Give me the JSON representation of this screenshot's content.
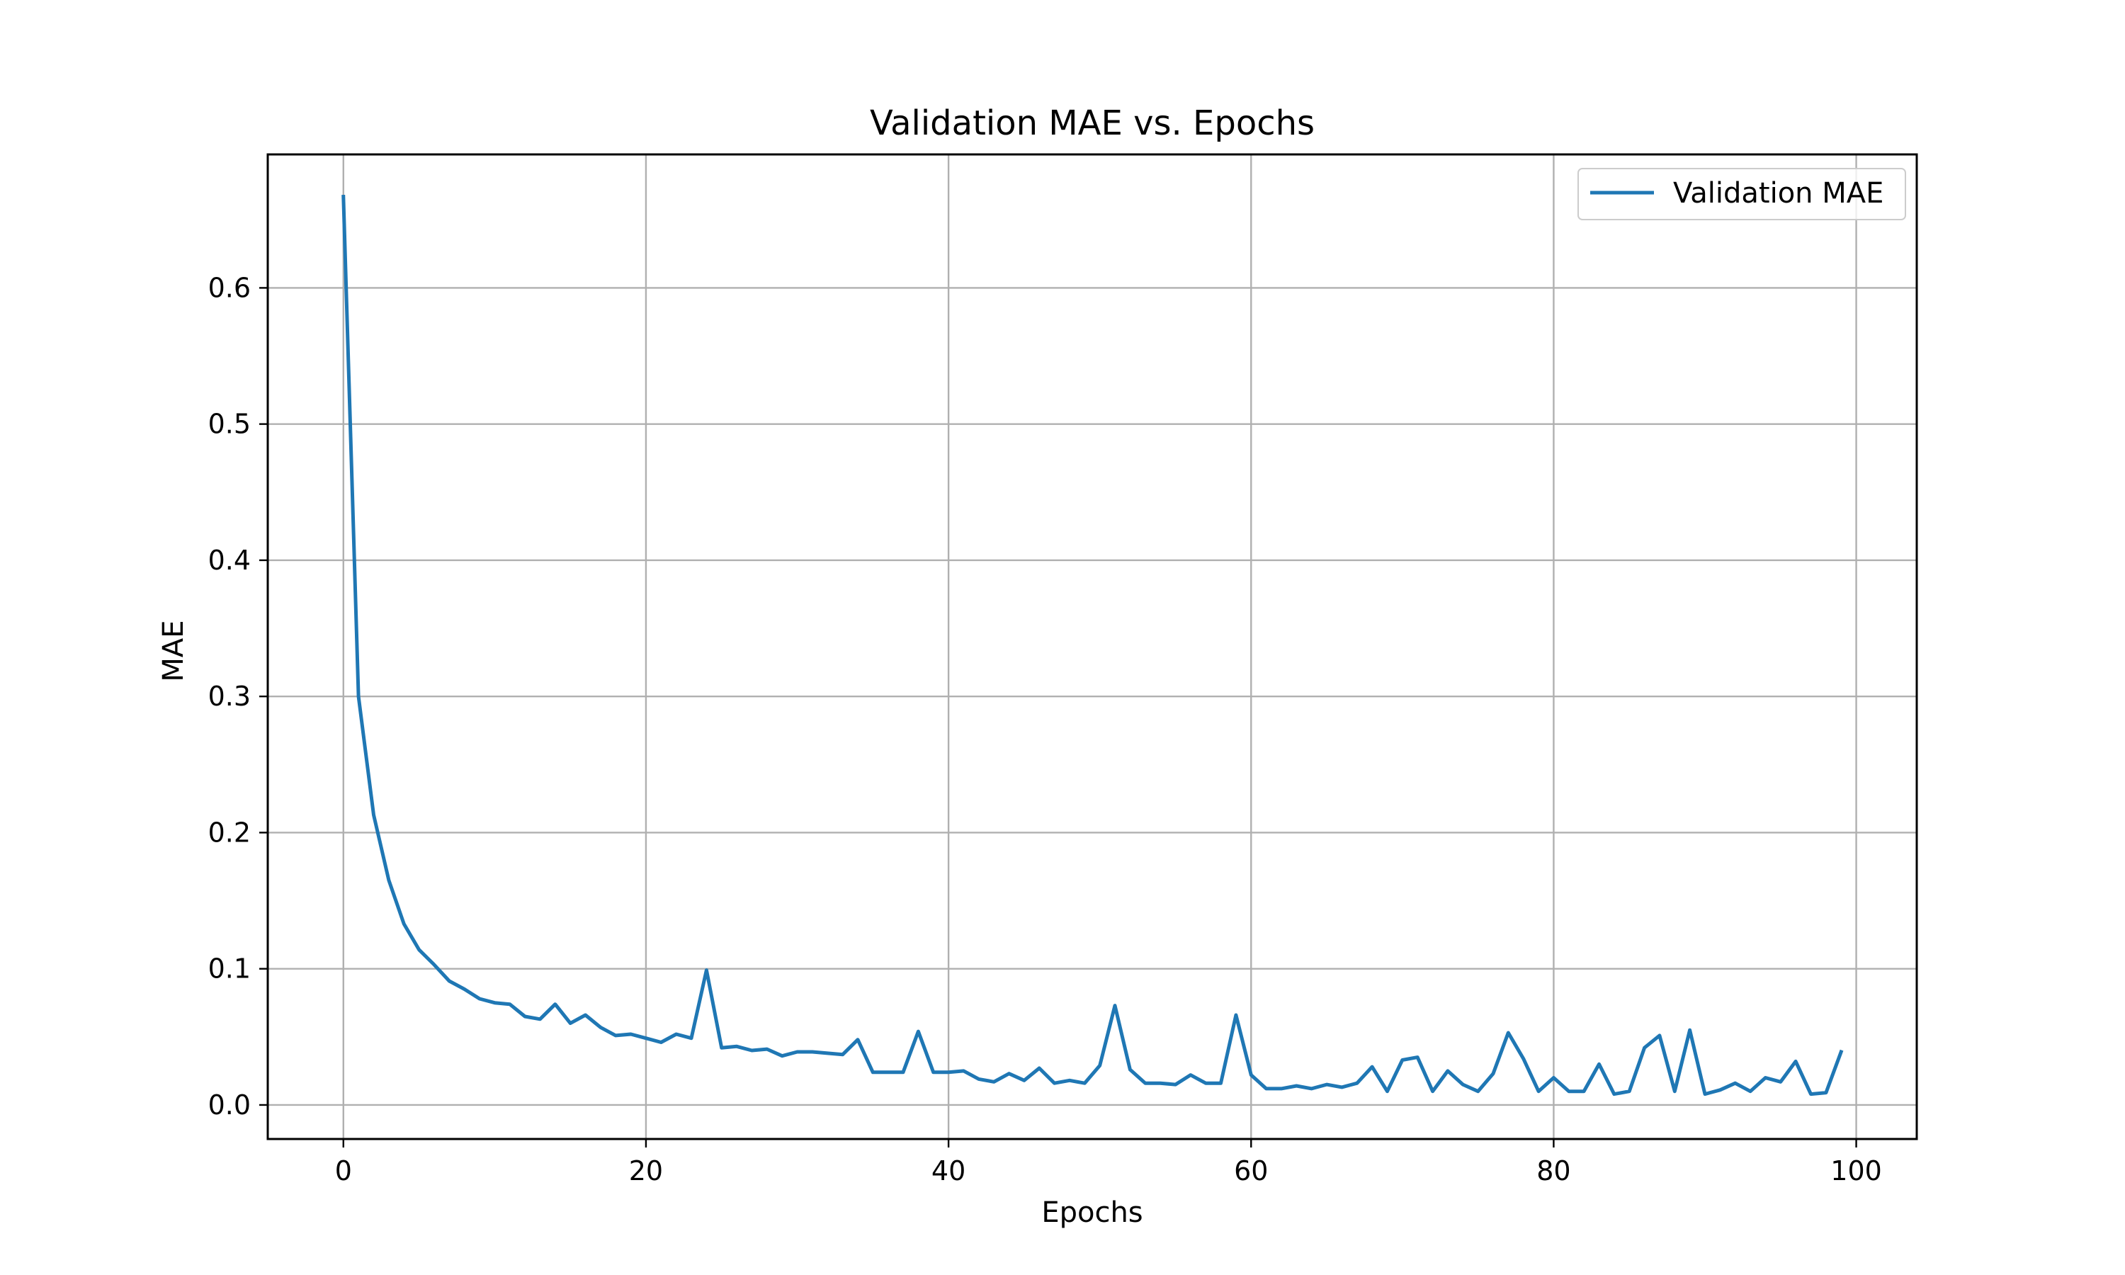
{
  "chart_data": {
    "type": "line",
    "title": "Validation MAE vs. Epochs",
    "xlabel": "Epochs",
    "ylabel": "MAE",
    "xlim": [
      -5,
      104
    ],
    "ylim": [
      -0.025,
      0.698
    ],
    "xticks": [
      0,
      20,
      40,
      60,
      80,
      100
    ],
    "yticks": [
      0.0,
      0.1,
      0.2,
      0.3,
      0.4,
      0.5,
      0.6
    ],
    "xtick_labels": [
      "0",
      "20",
      "40",
      "60",
      "80",
      "100"
    ],
    "ytick_labels": [
      "0.0",
      "0.1",
      "0.2",
      "0.3",
      "0.4",
      "0.5",
      "0.6"
    ],
    "grid": true,
    "legend_position": "top-right",
    "series": [
      {
        "name": "Validation MAE",
        "color": "#1f77b4",
        "x": [
          0,
          1,
          2,
          3,
          4,
          5,
          6,
          7,
          8,
          9,
          10,
          11,
          12,
          13,
          14,
          15,
          16,
          17,
          18,
          19,
          20,
          21,
          22,
          23,
          24,
          25,
          26,
          27,
          28,
          29,
          30,
          31,
          32,
          33,
          34,
          35,
          36,
          37,
          38,
          39,
          40,
          41,
          42,
          43,
          44,
          45,
          46,
          47,
          48,
          49,
          50,
          51,
          52,
          53,
          54,
          55,
          56,
          57,
          58,
          59,
          60,
          61,
          62,
          63,
          64,
          65,
          66,
          67,
          68,
          69,
          70,
          71,
          72,
          73,
          74,
          75,
          76,
          77,
          78,
          79,
          80,
          81,
          82,
          83,
          84,
          85,
          86,
          87,
          88,
          89,
          90,
          91,
          92,
          93,
          94,
          95,
          96,
          97,
          98,
          99
        ],
        "y": [
          0.667,
          0.3,
          0.213,
          0.165,
          0.133,
          0.114,
          0.103,
          0.091,
          0.085,
          0.078,
          0.075,
          0.074,
          0.065,
          0.063,
          0.074,
          0.06,
          0.066,
          0.057,
          0.051,
          0.052,
          0.049,
          0.046,
          0.052,
          0.049,
          0.099,
          0.042,
          0.043,
          0.04,
          0.041,
          0.036,
          0.039,
          0.039,
          0.038,
          0.037,
          0.048,
          0.024,
          0.024,
          0.024,
          0.054,
          0.024,
          0.024,
          0.025,
          0.019,
          0.017,
          0.023,
          0.018,
          0.027,
          0.016,
          0.018,
          0.016,
          0.029,
          0.073,
          0.026,
          0.016,
          0.016,
          0.015,
          0.022,
          0.016,
          0.016,
          0.066,
          0.022,
          0.012,
          0.012,
          0.014,
          0.012,
          0.015,
          0.013,
          0.016,
          0.028,
          0.01,
          0.033,
          0.035,
          0.01,
          0.025,
          0.015,
          0.01,
          0.023,
          0.053,
          0.034,
          0.01,
          0.02,
          0.01,
          0.01,
          0.03,
          0.008,
          0.01,
          0.042,
          0.051,
          0.01,
          0.055,
          0.008,
          0.011,
          0.016,
          0.01,
          0.02,
          0.017,
          0.032,
          0.008,
          0.009,
          0.039
        ]
      }
    ]
  }
}
